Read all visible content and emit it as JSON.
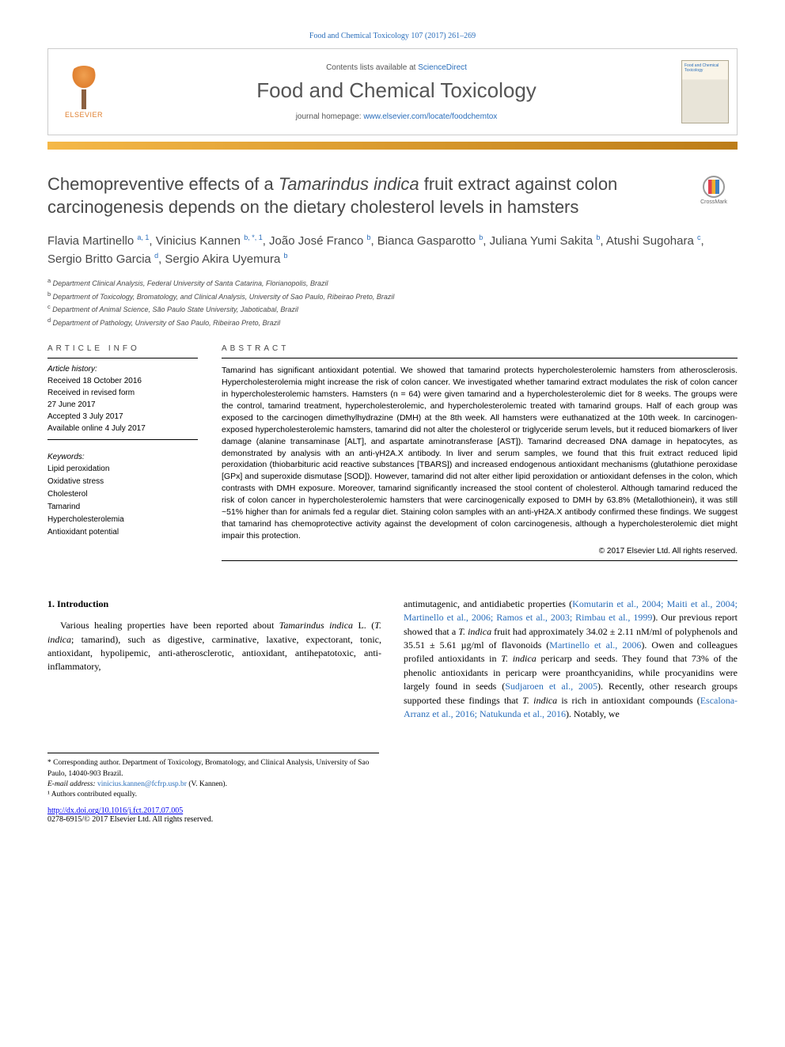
{
  "header": {
    "citation": "Food and Chemical Toxicology 107 (2017) 261–269",
    "contents_available_prefix": "Contents lists available at ",
    "contents_available_link": "ScienceDirect",
    "journal_name": "Food and Chemical Toxicology",
    "homepage_prefix": "journal homepage: ",
    "homepage_link": "www.elsevier.com/locate/foodchemtox",
    "elsevier_label": "ELSEVIER",
    "cover_text": "Food and Chemical Toxicology",
    "crossmark_label": "CrossMark"
  },
  "colors": {
    "link": "#2a6ebb",
    "heading_grey": "#484848",
    "bar_start": "#f5b848",
    "bar_end": "#bc7c18",
    "background": "#ffffff"
  },
  "title": {
    "pre": "Chemopreventive effects of a ",
    "ital": "Tamarindus indica",
    "post": " fruit extract against colon carcinogenesis depends on the dietary cholesterol levels in hamsters"
  },
  "authors_html": "Flavia Martinello <sup>a, 1</sup>, Vinicius Kannen <sup>b, *, 1</sup>, João José Franco <sup>b</sup>, Bianca Gasparotto <sup>b</sup>, Juliana Yumi Sakita <sup>b</sup>, Atushi Sugohara <sup>c</sup>, Sergio Britto Garcia <sup>d</sup>, Sergio Akira Uyemura <sup>b</sup>",
  "affiliations": [
    {
      "sup": "a",
      "text": "Department Clinical Analysis, Federal University of Santa Catarina, Florianopolis, Brazil"
    },
    {
      "sup": "b",
      "text": "Department of Toxicology, Bromatology, and Clinical Analysis, University of Sao Paulo, Ribeirao Preto, Brazil"
    },
    {
      "sup": "c",
      "text": "Department of Animal Science, São Paulo State University, Jaboticabal, Brazil"
    },
    {
      "sup": "d",
      "text": "Department of Pathology, University of Sao Paulo, Ribeirao Preto, Brazil"
    }
  ],
  "article_info": {
    "heading": "ARTICLE INFO",
    "history_label": "Article history:",
    "history": [
      "Received 18 October 2016",
      "Received in revised form",
      "27 June 2017",
      "Accepted 3 July 2017",
      "Available online 4 July 2017"
    ],
    "keywords_label": "Keywords:",
    "keywords": [
      "Lipid peroxidation",
      "Oxidative stress",
      "Cholesterol",
      "Tamarind",
      "Hypercholesterolemia",
      "Antioxidant potential"
    ]
  },
  "abstract": {
    "heading": "ABSTRACT",
    "text": "Tamarind has significant antioxidant potential. We showed that tamarind protects hypercholesterolemic hamsters from atherosclerosis. Hypercholesterolemia might increase the risk of colon cancer. We investigated whether tamarind extract modulates the risk of colon cancer in hypercholesterolemic hamsters. Hamsters (n = 64) were given tamarind and a hypercholesterolemic diet for 8 weeks. The groups were the control, tamarind treatment, hypercholesterolemic, and hypercholesterolemic treated with tamarind groups. Half of each group was exposed to the carcinogen dimethylhydrazine (DMH) at the 8th week. All hamsters were euthanatized at the 10th week. In carcinogen-exposed hypercholesterolemic hamsters, tamarind did not alter the cholesterol or triglyceride serum levels, but it reduced biomarkers of liver damage (alanine transaminase [ALT], and aspartate aminotransferase [AST]). Tamarind decreased DNA damage in hepatocytes, as demonstrated by analysis with an anti-γH2A.X antibody. In liver and serum samples, we found that this fruit extract reduced lipid peroxidation (thiobarbituric acid reactive substances [TBARS]) and increased endogenous antioxidant mechanisms (glutathione peroxidase [GPx] and superoxide dismutase [SOD]). However, tamarind did not alter either lipid peroxidation or antioxidant defenses in the colon, which contrasts with DMH exposure. Moreover, tamarind significantly increased the stool content of cholesterol. Although tamarind reduced the risk of colon cancer in hypercholesterolemic hamsters that were carcinogenically exposed to DMH by 63.8% (Metallothionein), it was still ~51% higher than for animals fed a regular diet. Staining colon samples with an anti-γH2A.X antibody confirmed these findings. We suggest that tamarind has chemoprotective activity against the development of colon carcinogenesis, although a hypercholesterolemic diet might impair this protection.",
    "copyright": "© 2017 Elsevier Ltd. All rights reserved."
  },
  "body": {
    "section_heading": "1. Introduction",
    "col1_pre": "Various healing properties have been reported about ",
    "col1_ital1": "Tamarindus indica",
    "col1_mid1": " L. (",
    "col1_ital2": "T. indica",
    "col1_post": "; tamarind), such as digestive, carminative, laxative, expectorant, tonic, antioxidant, hypolipemic, anti-atherosclerotic, antioxidant, antihepatotoxic, anti-inflammatory,",
    "col2_p1": "antimutagenic, and antidiabetic properties (",
    "col2_link1": "Komutarin et al., 2004; Maiti et al., 2004; Martinello et al., 2006; Ramos et al., 2003; Rimbau et al., 1999",
    "col2_p2": "). Our previous report showed that a ",
    "col2_ital1": "T. indica",
    "col2_p3": " fruit had approximately 34.02 ± 2.11 nM/ml of polyphenols and 35.51 ± 5.61 µg/ml of flavonoids (",
    "col2_link2": "Martinello et al., 2006",
    "col2_p4": "). Owen and colleagues profiled antioxidants in ",
    "col2_ital2": "T. indica",
    "col2_p5": " pericarp and seeds. They found that 73% of the phenolic antioxidants in pericarp were proanthcyanidins, while procyanidins were largely found in seeds (",
    "col2_link3": "Sudjaroen et al., 2005",
    "col2_p6": "). Recently, other research groups supported these findings that ",
    "col2_ital3": "T. indica",
    "col2_p7": " is rich in antioxidant compounds (",
    "col2_link4": "Escalona-Arranz et al., 2016; Natukunda et al., 2016",
    "col2_p8": "). Notably, we"
  },
  "footnotes": {
    "corr": "* Corresponding author. Department of Toxicology, Bromatology, and Clinical Analysis, University of Sao Paulo, 14040-903 Brazil.",
    "email_label": "E-mail address: ",
    "email": "vinicius.kannen@fcfrp.usp.br",
    "email_suffix": " (V. Kannen).",
    "note1": "¹ Authors contributed equally.",
    "doi": "http://dx.doi.org/10.1016/j.fct.2017.07.005",
    "issn": "0278-6915/© 2017 Elsevier Ltd. All rights reserved."
  }
}
